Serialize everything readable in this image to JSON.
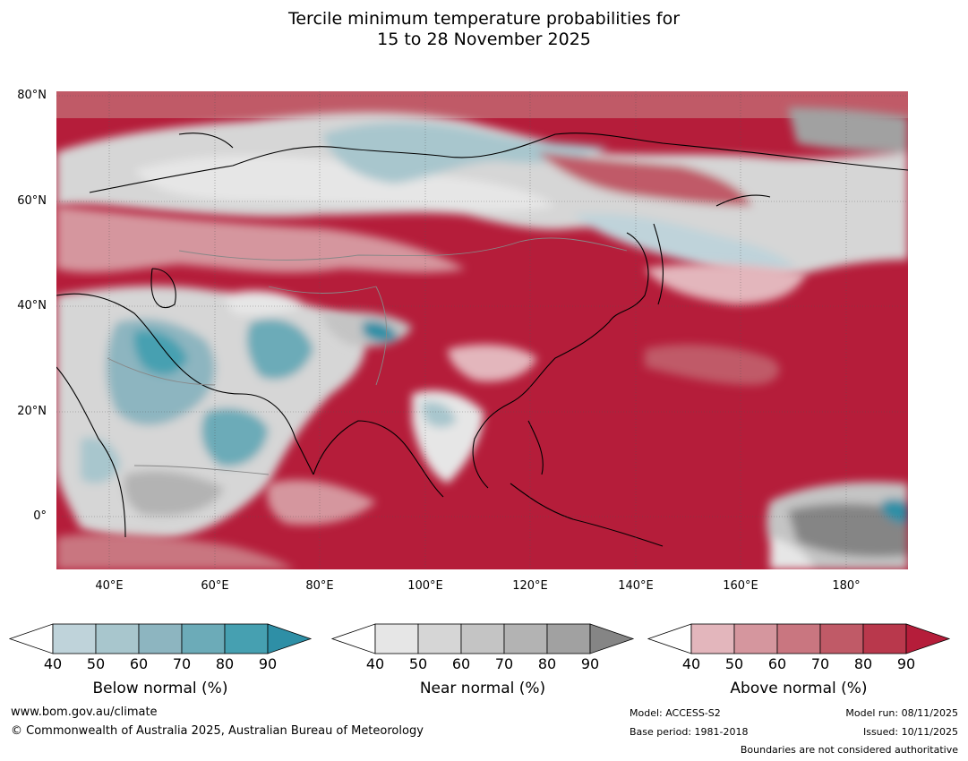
{
  "title_line1": "Tercile minimum temperature probabilities for",
  "title_line2": "15 to 28 November 2025",
  "map": {
    "lat_labels": [
      "80°N",
      "60°N",
      "40°N",
      "20°N",
      "0°"
    ],
    "lon_labels": [
      "40°E",
      "60°E",
      "80°E",
      "100°E",
      "120°E",
      "140°E",
      "160°E",
      "180°"
    ],
    "extent": {
      "lon_min": 30,
      "lon_max": 192,
      "lat_min": -10,
      "lat_max": 80
    }
  },
  "colorbars": [
    {
      "title": "Below normal (%)",
      "ticks": [
        "40",
        "50",
        "60",
        "70",
        "80",
        "90"
      ],
      "colors": [
        "#bfd3da",
        "#a8c6cd",
        "#8db5c0",
        "#6cabb8",
        "#46a0b1",
        "#2e8fa6"
      ]
    },
    {
      "title": "Near normal (%)",
      "ticks": [
        "40",
        "50",
        "60",
        "70",
        "80",
        "90"
      ],
      "colors": [
        "#e6e6e6",
        "#d6d6d6",
        "#c4c4c4",
        "#b3b3b3",
        "#a1a1a1",
        "#858585"
      ]
    },
    {
      "title": "Above normal (%)",
      "ticks": [
        "40",
        "50",
        "60",
        "70",
        "80",
        "90"
      ],
      "colors": [
        "#e3b6bc",
        "#d5969e",
        "#c97680",
        "#c05a67",
        "#b9384c",
        "#b51d3a"
      ]
    }
  ],
  "footer": {
    "website": "www.bom.gov.au/climate",
    "copyright": "© Commonwealth of Australia 2025, Australian Bureau of Meteorology",
    "model": "Model: ACCESS-S2",
    "base_period": "Base period: 1981-2018",
    "model_run": "Model run: 08/11/2025",
    "issued": "Issued: 10/11/2025",
    "disclaimer": "Boundaries are not considered authoritative"
  }
}
